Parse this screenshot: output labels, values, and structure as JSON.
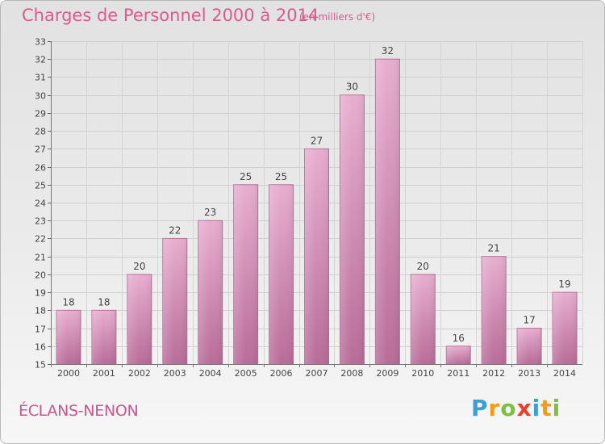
{
  "chart_data": {
    "type": "bar",
    "title": "Charges de Personnel 2000 à 2014",
    "subtitle": "(en milliers d'€)",
    "categories": [
      "2000",
      "2001",
      "2002",
      "2003",
      "2004",
      "2005",
      "2006",
      "2007",
      "2008",
      "2009",
      "2010",
      "2011",
      "2012",
      "2013",
      "2014"
    ],
    "values": [
      18,
      18,
      20,
      22,
      23,
      25,
      25,
      27,
      30,
      32,
      20,
      16,
      21,
      17,
      19
    ],
    "ylim": [
      15,
      33
    ],
    "yticks": [
      15,
      16,
      17,
      18,
      19,
      20,
      21,
      22,
      23,
      24,
      25,
      26,
      27,
      28,
      29,
      30,
      31,
      32,
      33
    ],
    "xlabel": "",
    "ylabel": "",
    "grid": true,
    "bar_color": "#c8709e"
  },
  "footer": {
    "location": "ÉCLANS-NENON",
    "logo_letters": [
      {
        "ch": "P",
        "color": "#3aa0dc"
      },
      {
        "ch": "r",
        "color": "#f39a1f"
      },
      {
        "ch": "o",
        "color": "#7cc043"
      },
      {
        "ch": "x",
        "color": "#e5402b"
      },
      {
        "ch": "i",
        "color": "#3aa0dc"
      },
      {
        "ch": "t",
        "color": "#f39a1f"
      },
      {
        "ch": "i",
        "color": "#7cc043"
      }
    ]
  }
}
